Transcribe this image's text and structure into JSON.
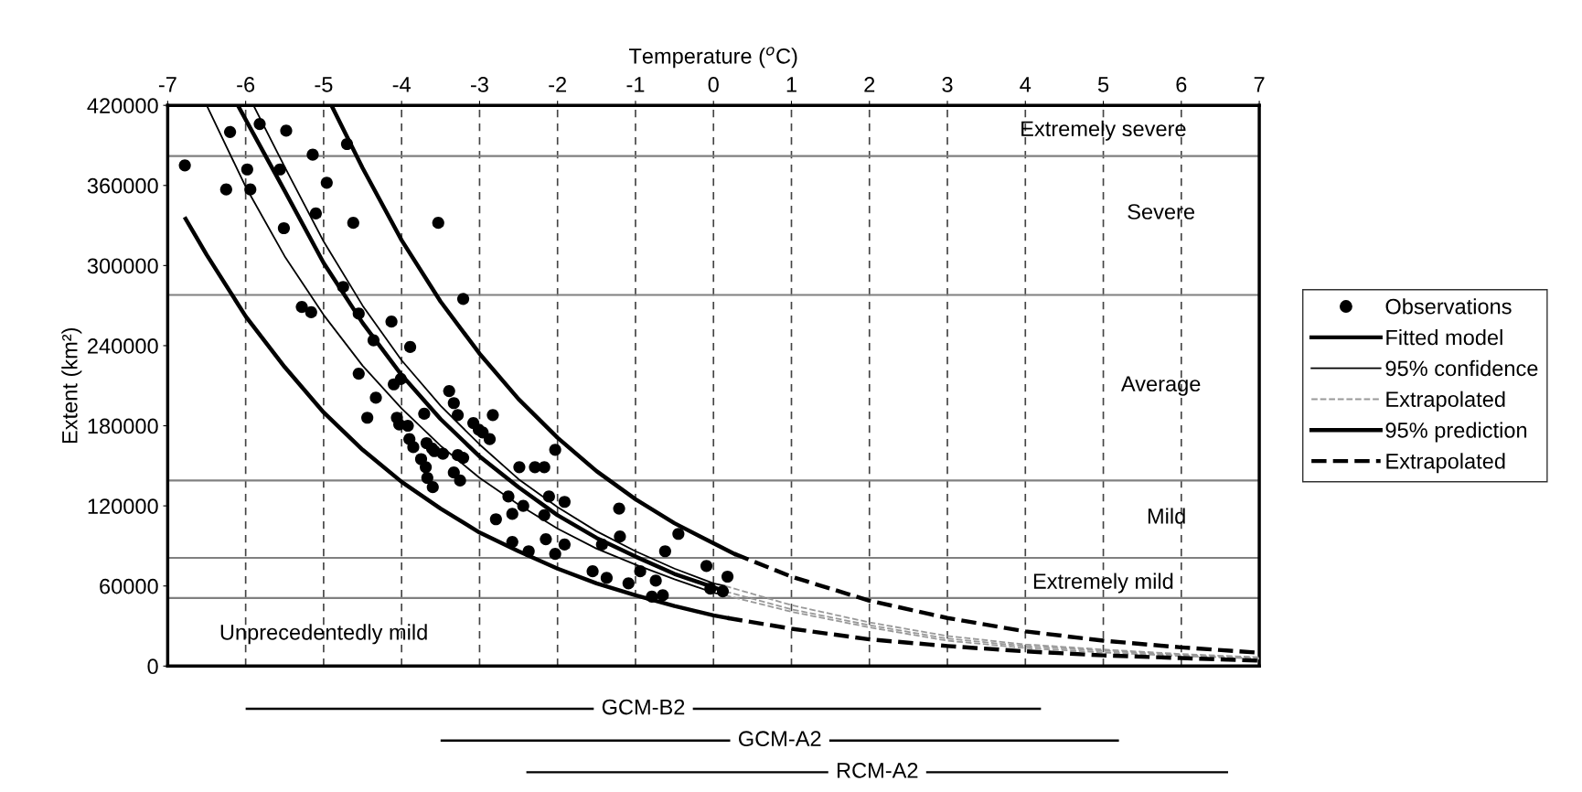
{
  "chart_data": [
    {
      "type": "line",
      "xlabel": "Temperature ($^{o}$C)",
      "ylabel": "Extent (km²)",
      "xlim": [
        -7,
        7
      ],
      "xticks": [
        -7,
        -6,
        -5,
        -4,
        -3,
        -2,
        -1,
        0,
        1,
        2,
        3,
        4,
        5,
        6,
        7
      ],
      "ylim": [
        0,
        420000
      ],
      "yticks": [
        0,
        60000,
        120000,
        180000,
        240000,
        300000,
        360000,
        420000
      ],
      "grid": "x",
      "legend": "right",
      "ref_lines": [
        {
          "axis": "y",
          "value": 382000,
          "color": "#808080"
        },
        {
          "axis": "y",
          "value": 278000,
          "color": "#808080"
        },
        {
          "axis": "y",
          "value": 139000,
          "color": "#808080"
        },
        {
          "axis": "y",
          "value": 81000,
          "color": "#808080"
        },
        {
          "axis": "y",
          "value": 51000,
          "color": "#808080"
        }
      ],
      "annotations": [
        "Extremely severe",
        "Severe",
        "Average",
        "Mild",
        "Extremely mild",
        "Unprecedentedly mild"
      ],
      "series": [
        {
          "name": "Observations",
          "type": "scatter",
          "marker": "circle",
          "color": "#000000",
          "x": [
            -6.78,
            -6.2,
            -6.25,
            -5.98,
            -5.94,
            -5.82,
            -5.48,
            -5.56,
            -5.51,
            -5.14,
            -4.96,
            -5.1,
            -4.7,
            -4.62,
            -3.53,
            -3.21,
            -4.75,
            -5.28,
            -5.16,
            -4.55,
            -4.13,
            -3.89,
            -4.36,
            -4.55,
            -4.33,
            -4.44,
            -4.06,
            -4.03,
            -3.92,
            -3.9,
            -4.1,
            -4.01,
            -3.39,
            -3.33,
            -3.28,
            -2.83,
            -3.08,
            -2.96,
            -3.68,
            -3.61,
            -3.75,
            -3.47,
            -3.28,
            -3.21,
            -3.67,
            -3.33,
            -3.71,
            -2.87,
            -3.01,
            -3.85,
            -3.58,
            -3.69,
            -3.6,
            -3.25,
            -2.03,
            -2.49,
            -2.29,
            -2.17,
            -2.63,
            -2.11,
            -1.91,
            -2.17,
            -2.44,
            -2.79,
            -2.58,
            -1.21,
            -2.15,
            -1.91,
            -2.03,
            -2.58,
            -2.37,
            -1.43,
            -1.2,
            -0.45,
            -0.62,
            -1.55,
            -1.37,
            -1.09,
            -0.94,
            -0.74,
            -0.79,
            -0.65,
            -0.09,
            0.18,
            0.12,
            -0.04
          ],
          "values": [
            375000,
            400000,
            357000,
            372000,
            357000,
            406000,
            401000,
            372000,
            328000,
            383000,
            362000,
            339000,
            391000,
            332000,
            332000,
            275000,
            284000,
            269000,
            265000,
            264000,
            258000,
            239000,
            244000,
            219000,
            201000,
            186000,
            186000,
            181000,
            180000,
            170000,
            211000,
            215000,
            206000,
            197000,
            188000,
            188000,
            182000,
            175000,
            167000,
            163000,
            155000,
            159000,
            158000,
            156000,
            141000,
            145000,
            189000,
            170000,
            177000,
            164000,
            161000,
            149000,
            134000,
            139000,
            162000,
            149000,
            149000,
            149000,
            127000,
            127000,
            123000,
            113000,
            120000,
            110000,
            114000,
            118000,
            95000,
            91000,
            84000,
            93000,
            86000,
            91000,
            97000,
            99000,
            86000,
            71000,
            66000,
            62000,
            71000,
            64000,
            52000,
            53000,
            75000,
            67000,
            56000,
            58000
          ]
        },
        {
          "name": "Fitted model",
          "line_style": "solid",
          "color": "#000000",
          "x": [
            -6.1,
            -5.5,
            -5,
            -4.5,
            -4,
            -3.5,
            -3,
            -2.5,
            -2,
            -1.5,
            -1,
            -0.5,
            0,
            0.15
          ],
          "values": [
            420000,
            356000,
            302000,
            257000,
            218000,
            185000,
            157000,
            134000,
            113000,
            96000,
            82000,
            69000,
            59000,
            56000
          ]
        },
        {
          "name": "95% confidence",
          "line_style": "solid",
          "color": "#000000",
          "x": [
            -5.9,
            -5.5,
            -5,
            -4.5,
            -4,
            -3.5,
            -3,
            -2.5,
            -2,
            -1.5,
            -1,
            -0.5,
            0,
            0.15
          ],
          "values": [
            420000,
            374000,
            318000,
            270000,
            229000,
            195000,
            166000,
            140000,
            119000,
            101000,
            86000,
            73000,
            62000,
            60000
          ]
        },
        {
          "line_style": "solid",
          "color": "#000000",
          "x": [
            -6.5,
            -6,
            -5.5,
            -5,
            -4.5,
            -4,
            -3.5,
            -3,
            -2.5,
            -2,
            -1.5,
            -1,
            -0.5,
            0,
            0.15
          ],
          "values": [
            420000,
            359000,
            307000,
            263000,
            225000,
            193000,
            165000,
            141000,
            121000,
            103000,
            88000,
            76000,
            65000,
            55000,
            53000
          ]
        },
        {
          "name": "Extrapolated",
          "line_style": "dashed",
          "color": "#999999",
          "x": [
            0.15,
            1,
            2,
            3,
            4,
            5,
            6,
            7
          ],
          "values": [
            56000,
            42500,
            30600,
            20600,
            14900,
            11500,
            8300,
            6000
          ]
        },
        {
          "line_style": "dashed",
          "color": "#999999",
          "x": [
            0.15,
            1,
            2,
            3,
            4,
            5,
            6,
            7
          ],
          "values": [
            60000,
            45600,
            32700,
            22500,
            16200,
            12400,
            9000,
            6600
          ]
        },
        {
          "line_style": "dashed",
          "color": "#999999",
          "x": [
            0.15,
            1,
            2,
            3,
            4,
            5,
            6,
            7
          ],
          "values": [
            53000,
            40700,
            29000,
            19000,
            13500,
            10200,
            7500,
            5500
          ]
        },
        {
          "name": "95% prediction",
          "line_style": "solid",
          "color": "#000000",
          "x": [
            -4.9,
            -4.5,
            -4,
            -3.5,
            -3,
            -2.5,
            -2,
            -1.5,
            -1,
            -0.5,
            0,
            0.27
          ],
          "values": [
            420000,
            373000,
            319000,
            273000,
            234000,
            200000,
            171000,
            146000,
            125000,
            107000,
            92000,
            84000
          ]
        },
        {
          "line_style": "solid",
          "color": "#000000",
          "x": [
            -6.77,
            -6.5,
            -6,
            -5.5,
            -5,
            -4.5,
            -4,
            -3.5,
            -3,
            -2.5,
            -2,
            -1.5,
            -1,
            -0.5,
            0,
            0.18
          ],
          "values": [
            335000,
            308000,
            262000,
            224000,
            190000,
            162000,
            138000,
            118000,
            100000,
            86000,
            73000,
            62000,
            53000,
            45000,
            38000,
            36000
          ]
        },
        {
          "name": "Extrapolated",
          "line_style": "dashed",
          "color": "#000000",
          "x": [
            0.27,
            1,
            2,
            3,
            4,
            5,
            6,
            7
          ],
          "values": [
            84000,
            67000,
            49000,
            36000,
            26000,
            19000,
            14000,
            10000
          ]
        },
        {
          "line_style": "dashed",
          "color": "#000000",
          "x": [
            0.18,
            1,
            2,
            3,
            4,
            5,
            6,
            7
          ],
          "values": [
            36000,
            28000,
            20000,
            15000,
            11000,
            8000,
            6000,
            4000
          ]
        }
      ]
    },
    {
      "type": "bar",
      "orientation": "horizontal",
      "categories": [
        "GCM-B2",
        "GCM-A2",
        "RCM-A2"
      ],
      "base": [
        -6,
        -3.5,
        -2.4
      ],
      "values": [
        10.2,
        8.7,
        9.0
      ],
      "color": "#000000",
      "xlim": [
        -7,
        7
      ],
      "tick_labels": false
    }
  ]
}
